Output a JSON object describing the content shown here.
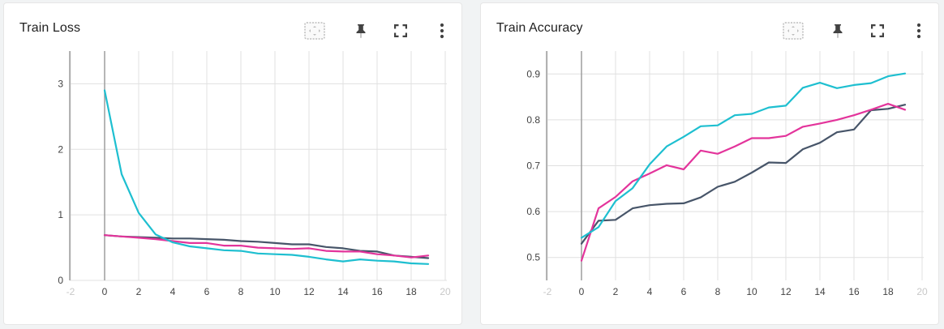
{
  "cards": [
    {
      "title": "Train Loss"
    },
    {
      "title": "Train Accuracy"
    }
  ],
  "toolbar_icons": [
    "fit-domain-icon",
    "pin-icon",
    "fullscreen-icon",
    "more-vert-icon"
  ],
  "colors": {
    "series_cyan": "#1ebfd0",
    "series_pink": "#e3349b",
    "series_slate": "#475569",
    "grid": "#e0e0e0",
    "axis": "#9e9e9e"
  },
  "chart_data": [
    {
      "type": "line",
      "title": "Train Loss",
      "xlim": [
        -2,
        20
      ],
      "ylim": [
        0,
        3.5
      ],
      "x_ticks": [
        -2,
        0,
        2,
        4,
        6,
        8,
        10,
        12,
        14,
        16,
        18,
        20
      ],
      "y_ticks": [
        0,
        1,
        2,
        3
      ],
      "y_tick_labels": [
        "0",
        "1",
        "2",
        "3"
      ],
      "grid": true,
      "x": [
        0,
        1,
        2,
        3,
        4,
        5,
        6,
        7,
        8,
        9,
        10,
        11,
        12,
        13,
        14,
        15,
        16,
        17,
        18,
        19
      ],
      "series": [
        {
          "color": "#475569",
          "values": [
            0.69,
            0.67,
            0.66,
            0.65,
            0.64,
            0.64,
            0.63,
            0.62,
            0.6,
            0.59,
            0.57,
            0.55,
            0.55,
            0.51,
            0.49,
            0.45,
            0.44,
            0.38,
            0.36,
            0.34
          ]
        },
        {
          "color": "#e3349b",
          "values": [
            0.69,
            0.67,
            0.65,
            0.63,
            0.6,
            0.57,
            0.57,
            0.53,
            0.53,
            0.5,
            0.49,
            0.48,
            0.49,
            0.45,
            0.44,
            0.44,
            0.4,
            0.38,
            0.35,
            0.38
          ]
        },
        {
          "color": "#1ebfd0",
          "values": [
            2.9,
            1.62,
            1.03,
            0.7,
            0.58,
            0.52,
            0.49,
            0.46,
            0.45,
            0.41,
            0.4,
            0.39,
            0.36,
            0.32,
            0.29,
            0.32,
            0.3,
            0.29,
            0.26,
            0.25
          ]
        }
      ]
    },
    {
      "type": "line",
      "title": "Train Accuracy",
      "xlim": [
        -2,
        20
      ],
      "ylim": [
        0.45,
        0.95
      ],
      "x_ticks": [
        -2,
        0,
        2,
        4,
        6,
        8,
        10,
        12,
        14,
        16,
        18,
        20
      ],
      "y_ticks": [
        0.5,
        0.6,
        0.7,
        0.8,
        0.9
      ],
      "y_tick_labels": [
        "0.5",
        "0.6",
        "0.7",
        "0.8",
        "0.9"
      ],
      "grid": true,
      "x": [
        0,
        1,
        2,
        3,
        4,
        5,
        6,
        7,
        8,
        9,
        10,
        11,
        12,
        13,
        14,
        15,
        16,
        17,
        18,
        19
      ],
      "series": [
        {
          "color": "#475569",
          "values": [
            0.53,
            0.58,
            0.582,
            0.607,
            0.614,
            0.617,
            0.618,
            0.631,
            0.654,
            0.665,
            0.685,
            0.707,
            0.706,
            0.736,
            0.75,
            0.773,
            0.779,
            0.821,
            0.824,
            0.833
          ]
        },
        {
          "color": "#e3349b",
          "values": [
            0.493,
            0.607,
            0.632,
            0.666,
            0.683,
            0.701,
            0.692,
            0.733,
            0.726,
            0.742,
            0.76,
            0.76,
            0.765,
            0.785,
            0.792,
            0.8,
            0.81,
            0.822,
            0.835,
            0.822
          ]
        },
        {
          "color": "#1ebfd0",
          "values": [
            0.543,
            0.566,
            0.623,
            0.651,
            0.703,
            0.742,
            0.763,
            0.786,
            0.788,
            0.81,
            0.813,
            0.827,
            0.831,
            0.87,
            0.881,
            0.869,
            0.876,
            0.88,
            0.895,
            0.901
          ]
        }
      ]
    }
  ]
}
